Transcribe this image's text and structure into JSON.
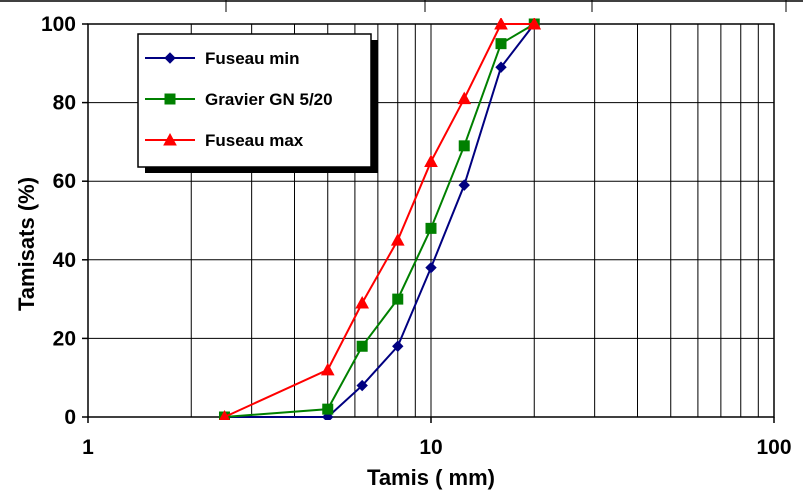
{
  "chart_data": {
    "type": "line",
    "title": "",
    "xlabel": "Tamis ( mm)",
    "ylabel": "Tamisats (%)",
    "xscale": "log",
    "xlim": [
      1,
      100
    ],
    "ylim": [
      0,
      100
    ],
    "x_ticks": [
      "1",
      "10",
      "100"
    ],
    "y_ticks": [
      "0",
      "20",
      "40",
      "60",
      "80",
      "100"
    ],
    "grid": true,
    "legend_position": "top-left",
    "series": [
      {
        "name": "Fuseau min",
        "color": "#000080",
        "marker": "diamond",
        "x": [
          2.5,
          5,
          6.3,
          8,
          10,
          12.5,
          16,
          20
        ],
        "y": [
          0,
          0,
          8,
          18,
          38,
          59,
          89,
          100
        ]
      },
      {
        "name": "Gravier GN 5/20",
        "color": "#008000",
        "marker": "square",
        "x": [
          2.5,
          5,
          6.3,
          8,
          10,
          12.5,
          16,
          20
        ],
        "y": [
          0,
          2,
          18,
          30,
          48,
          69,
          95,
          100
        ]
      },
      {
        "name": "Fuseau max",
        "color": "#ff0000",
        "marker": "triangle",
        "x": [
          2.5,
          5,
          6.3,
          8,
          10,
          12.5,
          16,
          20
        ],
        "y": [
          0,
          12,
          29,
          45,
          65,
          81,
          100,
          100
        ]
      }
    ]
  }
}
